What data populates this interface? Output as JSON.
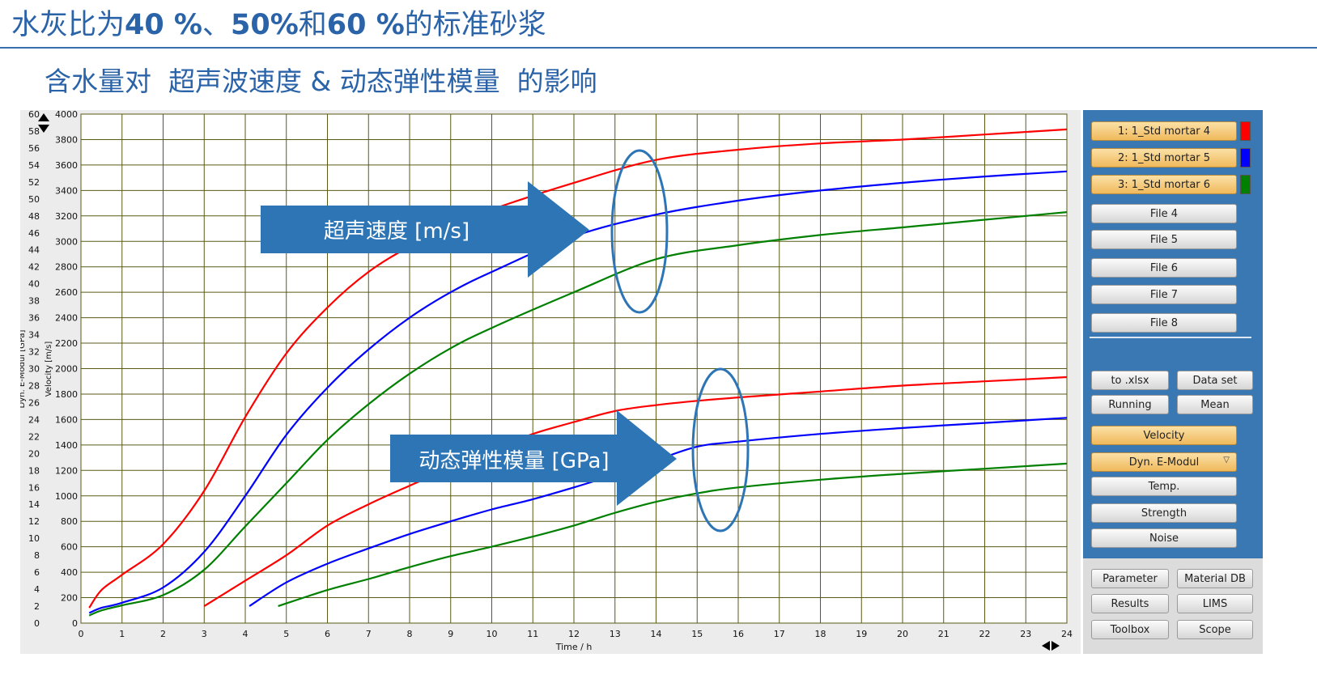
{
  "header": {
    "title_pre": "水灰比为",
    "title_b1": "40 %",
    "title_mid1": "、",
    "title_b2": "50%",
    "title_mid2": "和",
    "title_b3": "60 %",
    "title_post": "的标准砂浆",
    "subtitle": "含水量对  超声波速度 & 动态弹性模量  的影响"
  },
  "annotations": {
    "velocity_arrow": "超声速度 [m/s]",
    "modulus_arrow": "动态弹性模量 [GPa]"
  },
  "colors": {
    "accent": "#2e75b6",
    "series1": "#ff0000",
    "series2": "#0000ff",
    "series3": "#008000",
    "grid": "#5a5a14",
    "panel": "#3a78b3",
    "button_active": "#f0b95c"
  },
  "chart_data": {
    "type": "line",
    "xlabel": "Time / h",
    "ylabel": "Velocity [m/s]",
    "ylabel2": "Dyn. E-Modul [GPa]",
    "xlim": [
      0,
      24
    ],
    "ylim": [
      0,
      4000
    ],
    "ylim2": [
      0,
      60
    ],
    "x_ticks": [
      "0",
      "1",
      "2",
      "3",
      "4",
      "5",
      "6",
      "7",
      "8",
      "9",
      "10",
      "11",
      "12",
      "13",
      "14",
      "15",
      "16",
      "17",
      "18",
      "19",
      "20",
      "21",
      "22",
      "23",
      "24"
    ],
    "y_ticks": [
      "0",
      "200",
      "400",
      "600",
      "800",
      "1000",
      "1200",
      "1400",
      "1600",
      "1800",
      "2000",
      "2200",
      "2400",
      "2600",
      "2800",
      "3000",
      "3200",
      "3400",
      "3600",
      "3800",
      "4000"
    ],
    "y2_ticks": [
      "0",
      "2",
      "4",
      "6",
      "8",
      "10",
      "12",
      "14",
      "16",
      "18",
      "20",
      "22",
      "24",
      "26",
      "28",
      "30",
      "32",
      "34",
      "36",
      "38",
      "40",
      "42",
      "44",
      "46",
      "48",
      "50",
      "52",
      "54",
      "56",
      "58",
      "60"
    ],
    "grid": true,
    "series": [
      {
        "name": "1: 1_Std mortar 4",
        "color": "#ff0000",
        "quantity": "velocity",
        "x": [
          0.2,
          0.5,
          1,
          2,
          3,
          4,
          5,
          6,
          7,
          8,
          9,
          10,
          12,
          14,
          16,
          18,
          20,
          22,
          24
        ],
        "y": [
          120,
          260,
          380,
          620,
          1040,
          1620,
          2120,
          2480,
          2760,
          2960,
          3120,
          3250,
          3460,
          3640,
          3720,
          3770,
          3800,
          3840,
          3880
        ]
      },
      {
        "name": "1: 1_Std mortar 4",
        "color": "#ff0000",
        "quantity": "modulus",
        "x": [
          3,
          4,
          5,
          6,
          7,
          8,
          9,
          10,
          11,
          12,
          13,
          14,
          15,
          16,
          18,
          20,
          22,
          24
        ],
        "y": [
          2,
          5,
          8,
          11.5,
          14,
          16.2,
          18.3,
          20.3,
          22.3,
          23.7,
          25,
          25.7,
          26.2,
          26.6,
          27.3,
          28,
          28.5,
          29
        ]
      },
      {
        "name": "2: 1_Std mortar 5",
        "color": "#0000ff",
        "quantity": "velocity",
        "x": [
          0.2,
          0.5,
          1,
          2,
          3,
          4,
          5,
          6,
          7,
          8,
          9,
          10,
          12,
          14,
          16,
          18,
          20,
          22,
          24
        ],
        "y": [
          80,
          120,
          160,
          280,
          560,
          1000,
          1480,
          1850,
          2150,
          2400,
          2600,
          2760,
          3040,
          3210,
          3320,
          3400,
          3460,
          3510,
          3550
        ]
      },
      {
        "name": "2: 1_Std mortar 5",
        "color": "#0000ff",
        "quantity": "modulus",
        "x": [
          4.1,
          5,
          6,
          7,
          8,
          9,
          10,
          11,
          12,
          13,
          14,
          15,
          16,
          18,
          20,
          22,
          24
        ],
        "y": [
          2,
          4.8,
          7,
          8.8,
          10.5,
          12,
          13.4,
          14.6,
          16,
          17.5,
          19.2,
          20.8,
          21.4,
          22.3,
          23,
          23.6,
          24.2
        ]
      },
      {
        "name": "3: 1_Std mortar 6",
        "color": "#008000",
        "quantity": "velocity",
        "x": [
          0.2,
          0.5,
          1,
          2,
          3,
          4,
          5,
          6,
          7,
          8,
          9,
          10,
          12,
          14,
          16,
          18,
          20,
          22,
          24
        ],
        "y": [
          60,
          100,
          140,
          220,
          420,
          760,
          1100,
          1440,
          1720,
          1960,
          2160,
          2320,
          2600,
          2860,
          2970,
          3050,
          3110,
          3170,
          3230
        ]
      },
      {
        "name": "3: 1_Std mortar 6",
        "color": "#008000",
        "quantity": "modulus",
        "x": [
          4.8,
          6,
          7,
          8,
          9,
          10,
          11,
          12,
          13,
          14,
          15,
          16,
          18,
          20,
          22,
          24
        ],
        "y": [
          2,
          3.9,
          5.2,
          6.6,
          7.9,
          9,
          10.2,
          11.5,
          13,
          14.3,
          15.3,
          16,
          16.9,
          17.6,
          18.2,
          18.8
        ]
      }
    ]
  },
  "side_panel": {
    "series_buttons": [
      {
        "label": "1: 1_Std mortar 4",
        "color": "#ff0000"
      },
      {
        "label": "2: 1_Std mortar 5",
        "color": "#0000ff"
      },
      {
        "label": "3: 1_Std mortar 6",
        "color": "#008000"
      }
    ],
    "file_buttons": [
      "File 4",
      "File 5",
      "File 6",
      "File 7",
      "File 8"
    ],
    "export_xlsx": "to .xlsx",
    "data_set": "Data set",
    "running": "Running",
    "mean": "Mean",
    "velocity": "Velocity",
    "dyn_e_modul": "Dyn. E-Modul",
    "temp": "Temp.",
    "strength": "Strength",
    "noise": "Noise",
    "parameter": "Parameter",
    "material_db": "Material DB",
    "results": "Results",
    "lims": "LIMS",
    "toolbox": "Toolbox",
    "scope": "Scope"
  }
}
